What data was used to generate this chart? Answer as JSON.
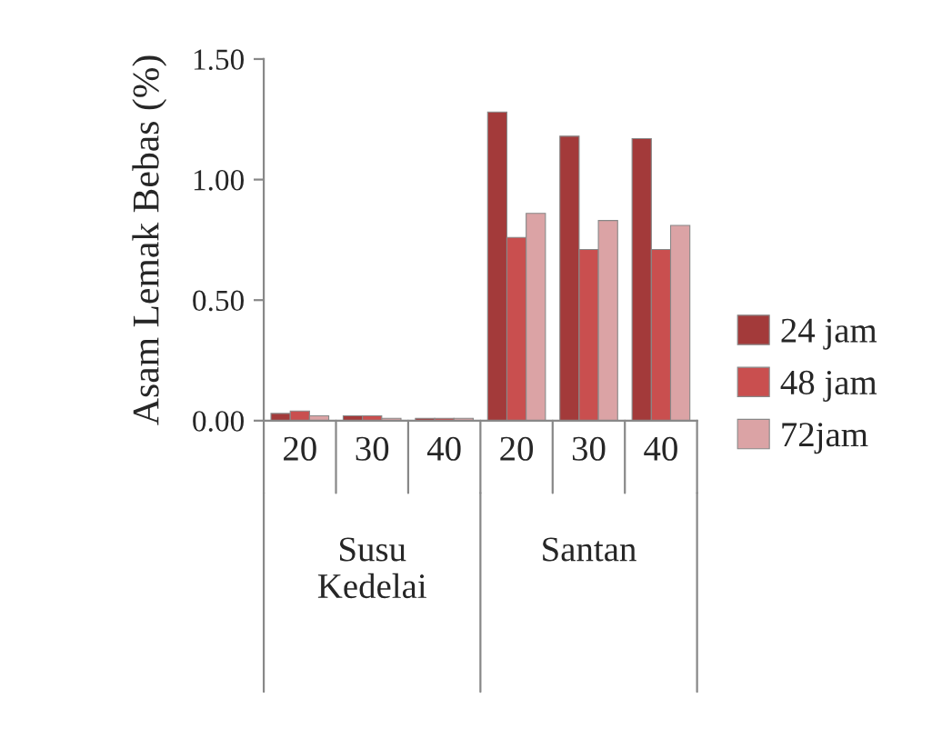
{
  "chart_data": {
    "type": "bar",
    "ylabel": "Asam Lemak Bebas (%)",
    "categories": [
      "20",
      "30",
      "40",
      "20",
      "30",
      "40"
    ],
    "series": [
      {
        "name": "24 jam",
        "color": "#a33a3a",
        "values": [
          0.03,
          0.02,
          0.01,
          1.28,
          1.18,
          1.17
        ]
      },
      {
        "name": "48 jam",
        "color": "#c94f4f",
        "values": [
          0.04,
          0.02,
          0.01,
          0.76,
          0.71,
          0.71
        ]
      },
      {
        "name": "72jam",
        "color": "#dba3a5",
        "values": [
          0.02,
          0.01,
          0.01,
          0.86,
          0.83,
          0.81
        ]
      }
    ],
    "annotations": [
      "Susu\nKedelai",
      "Santan"
    ],
    "ylim": [
      0,
      1.5
    ],
    "yticks": [
      {
        "value": 0,
        "label": "0.00"
      },
      {
        "value": 0.5,
        "label": "0.50"
      },
      {
        "value": 1.0,
        "label": "1.00"
      },
      {
        "value": 1.5,
        "label": "1.50"
      }
    ],
    "grid": false,
    "legend": "right"
  }
}
